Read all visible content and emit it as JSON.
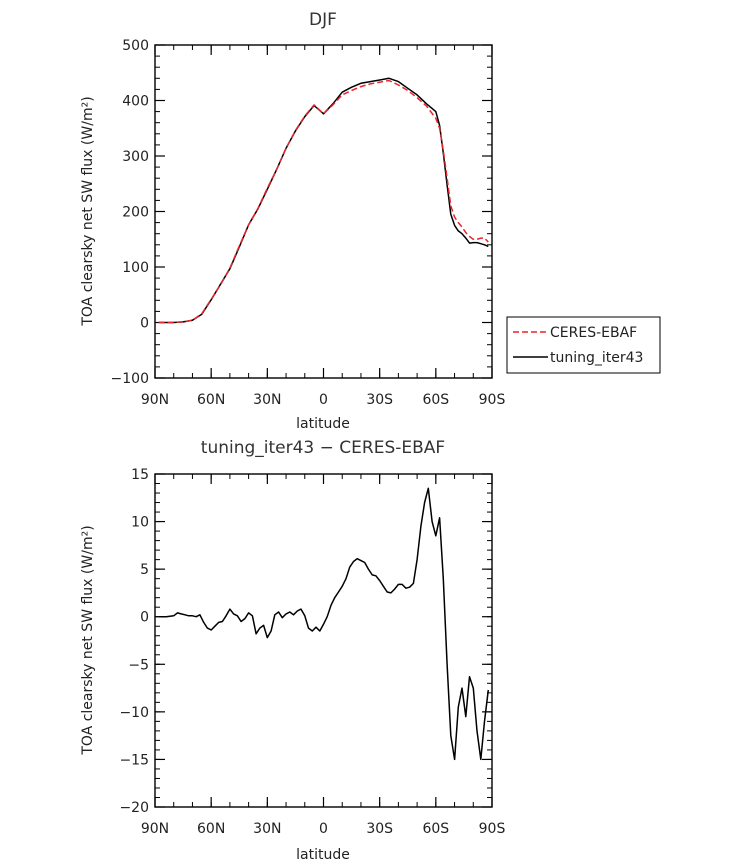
{
  "chart_data": [
    {
      "type": "line",
      "title": "DJF",
      "xlabel": "latitude",
      "ylabel": "TOA clearsky net SW flux (W/m²)",
      "xlim": [
        -90,
        90
      ],
      "ylim": [
        -100,
        500
      ],
      "x_ticks": [
        -90,
        -60,
        -30,
        0,
        30,
        60,
        90
      ],
      "x_tick_labels": [
        "90N",
        "60N",
        "30N",
        "0",
        "30S",
        "60S",
        "90S"
      ],
      "y_ticks": [
        -100,
        0,
        100,
        200,
        300,
        400,
        500
      ],
      "y_tick_labels": [
        "−100",
        "0",
        "100",
        "200",
        "300",
        "400",
        "500"
      ],
      "legend_position": "right",
      "series": [
        {
          "name": "CERES-EBAF",
          "color": "#e8262e",
          "dash": "dashed",
          "x": [
            -88,
            -85,
            -80,
            -75,
            -70,
            -65,
            -60,
            -55,
            -50,
            -45,
            -40,
            -35,
            -30,
            -25,
            -20,
            -15,
            -10,
            -5,
            0,
            5,
            10,
            15,
            20,
            25,
            30,
            35,
            40,
            45,
            50,
            55,
            60,
            62,
            64,
            66,
            68,
            70,
            72,
            74,
            76,
            78,
            80,
            82,
            84,
            86,
            88
          ],
          "y": [
            0,
            0,
            0,
            1,
            4,
            16,
            42,
            68,
            98,
            138,
            176,
            206,
            242,
            276,
            314,
            346,
            372,
            392,
            376,
            392,
            410,
            418,
            425,
            430,
            433,
            436,
            428,
            418,
            405,
            390,
            368,
            350,
            310,
            260,
            210,
            190,
            180,
            172,
            162,
            155,
            150,
            150,
            152,
            152,
            145
          ]
        },
        {
          "name": "tuning_iter43",
          "color": "#000000",
          "dash": "solid",
          "x": [
            -88,
            -85,
            -80,
            -75,
            -70,
            -65,
            -60,
            -55,
            -50,
            -45,
            -40,
            -35,
            -30,
            -25,
            -20,
            -15,
            -10,
            -5,
            0,
            5,
            10,
            15,
            20,
            25,
            30,
            35,
            40,
            45,
            50,
            55,
            60,
            62,
            64,
            66,
            68,
            70,
            72,
            74,
            76,
            78,
            80,
            82,
            84,
            86,
            88
          ],
          "y": [
            0,
            0,
            0,
            1,
            4,
            15,
            41,
            69,
            97,
            136,
            176,
            205,
            240,
            276,
            314,
            345,
            371,
            391,
            376,
            394,
            415,
            424,
            431,
            434,
            437,
            440,
            434,
            422,
            410,
            394,
            380,
            355,
            305,
            248,
            195,
            175,
            165,
            160,
            152,
            143,
            144,
            144,
            142,
            140,
            137
          ]
        }
      ]
    },
    {
      "type": "line",
      "title": "tuning_iter43 − CERES-EBAF",
      "xlabel": "latitude",
      "ylabel": "TOA clearsky net SW flux (W/m²)",
      "xlim": [
        -90,
        90
      ],
      "ylim": [
        -20,
        15
      ],
      "x_ticks": [
        -90,
        -60,
        -30,
        0,
        30,
        60,
        90
      ],
      "x_tick_labels": [
        "90N",
        "60N",
        "30N",
        "0",
        "30S",
        "60S",
        "90S"
      ],
      "y_ticks": [
        -20,
        -15,
        -10,
        -5,
        0,
        5,
        10,
        15
      ],
      "y_tick_labels": [
        "−20",
        "−15",
        "−10",
        "−5",
        "0",
        "5",
        "10",
        "15"
      ],
      "series": [
        {
          "name": "tuning_iter43 − CERES-EBAF",
          "color": "#000000",
          "dash": "solid",
          "x": [
            -88,
            -84,
            -80,
            -78,
            -76,
            -74,
            -72,
            -70,
            -68,
            -66,
            -64,
            -62,
            -60,
            -58,
            -56,
            -54,
            -52,
            -50,
            -48,
            -46,
            -44,
            -42,
            -40,
            -38,
            -36,
            -34,
            -32,
            -30,
            -28,
            -26,
            -24,
            -22,
            -20,
            -18,
            -16,
            -14,
            -12,
            -10,
            -8,
            -6,
            -4,
            -2,
            0,
            2,
            4,
            6,
            8,
            10,
            12,
            14,
            16,
            18,
            20,
            22,
            24,
            26,
            28,
            30,
            32,
            34,
            36,
            38,
            40,
            42,
            44,
            46,
            48,
            50,
            52,
            54,
            56,
            58,
            60,
            62,
            64,
            66,
            68,
            70,
            72,
            74,
            76,
            78,
            80,
            82,
            84,
            86,
            88
          ],
          "y": [
            0,
            0,
            0.1,
            0.4,
            0.3,
            0.2,
            0.1,
            0.1,
            0,
            0.2,
            -0.6,
            -1.2,
            -1.4,
            -1.0,
            -0.6,
            -0.5,
            0.1,
            0.8,
            0.3,
            0.1,
            -0.5,
            -0.2,
            0.4,
            0.1,
            -1.8,
            -1.2,
            -0.9,
            -2.2,
            -1.5,
            0.2,
            0.5,
            -0.1,
            0.3,
            0.5,
            0.2,
            0.6,
            0.8,
            0.1,
            -1.2,
            -1.5,
            -1.1,
            -1.5,
            -0.8,
            0,
            1.2,
            2.0,
            2.6,
            3.2,
            4.0,
            5.2,
            5.8,
            6.1,
            5.9,
            5.7,
            5.0,
            4.4,
            4.3,
            3.8,
            3.2,
            2.6,
            2.5,
            2.9,
            3.4,
            3.4,
            3.0,
            3.1,
            3.5,
            6.0,
            9.5,
            12.0,
            13.5,
            10.0,
            8.5,
            10.4,
            4.0,
            -5.0,
            -12.5,
            -15.0,
            -9.5,
            -7.5,
            -10.5,
            -6.3,
            -7.5,
            -12.0,
            -15.0,
            -11.0,
            -7.7
          ]
        }
      ]
    }
  ]
}
